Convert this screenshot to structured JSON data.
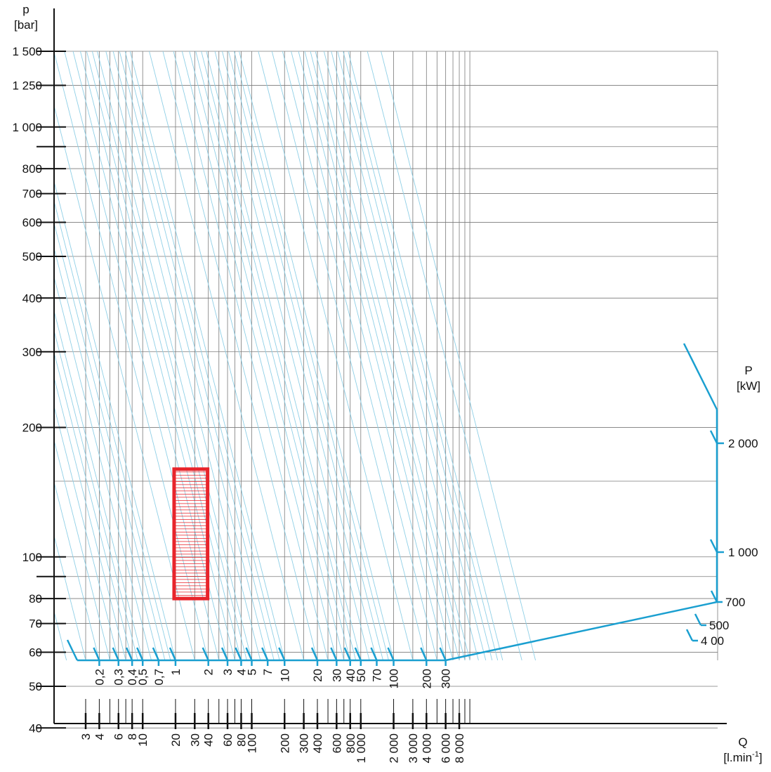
{
  "chart_data": {
    "type": "nomogram",
    "y_axis": {
      "label": "p",
      "unit": "[bar]",
      "scale": "log",
      "ticks": [
        {
          "v": 1500,
          "t": "1 500"
        },
        {
          "v": 1250,
          "t": "1 250"
        },
        {
          "v": 1000,
          "t": "1 000"
        },
        {
          "v": 900,
          "t": ""
        },
        {
          "v": 800,
          "t": "800"
        },
        {
          "v": 700,
          "t": "700"
        },
        {
          "v": 600,
          "t": "600"
        },
        {
          "v": 500,
          "t": "500"
        },
        {
          "v": 400,
          "t": "400"
        },
        {
          "v": 300,
          "t": "300"
        },
        {
          "v": 200,
          "t": "200"
        },
        {
          "v": 100,
          "t": "100"
        },
        {
          "v": 90,
          "t": ""
        },
        {
          "v": 80,
          "t": "80"
        },
        {
          "v": 70,
          "t": "70"
        },
        {
          "v": 60,
          "t": "60"
        },
        {
          "v": 50,
          "t": "50"
        },
        {
          "v": 40,
          "t": "40"
        }
      ]
    },
    "x_axis": {
      "label": "Q",
      "unit": "[l.min",
      "unit_exp": "-1",
      "unit_close": "]",
      "scale": "log",
      "ticks": [
        {
          "v": 3,
          "t": "3"
        },
        {
          "v": 4,
          "t": "4"
        },
        {
          "v": 5,
          "t": ""
        },
        {
          "v": 6,
          "t": "6"
        },
        {
          "v": 7,
          "t": ""
        },
        {
          "v": 8,
          "t": "8"
        },
        {
          "v": 10,
          "t": "10"
        },
        {
          "v": 20,
          "t": "20"
        },
        {
          "v": 30,
          "t": "30"
        },
        {
          "v": 40,
          "t": "40"
        },
        {
          "v": 50,
          "t": ""
        },
        {
          "v": 60,
          "t": "60"
        },
        {
          "v": 70,
          "t": ""
        },
        {
          "v": 80,
          "t": "80"
        },
        {
          "v": 100,
          "t": "100"
        },
        {
          "v": 200,
          "t": "200"
        },
        {
          "v": 300,
          "t": "300"
        },
        {
          "v": 400,
          "t": "400"
        },
        {
          "v": 500,
          "t": ""
        },
        {
          "v": 600,
          "t": "600"
        },
        {
          "v": 700,
          "t": ""
        },
        {
          "v": 800,
          "t": "800"
        },
        {
          "v": 1000,
          "t": "1 000"
        },
        {
          "v": 2000,
          "t": "2 000"
        },
        {
          "v": 3000,
          "t": "3 000"
        },
        {
          "v": 4000,
          "t": "4 000"
        },
        {
          "v": 5000,
          "t": ""
        },
        {
          "v": 6000,
          "t": "6 000"
        },
        {
          "v": 7000,
          "t": ""
        },
        {
          "v": 8000,
          "t": "8 000"
        },
        {
          "v": 9000,
          "t": ""
        },
        {
          "v": 10000,
          "t": ""
        }
      ]
    },
    "power_axis": {
      "label": "P",
      "unit": "[kW]",
      "scale": "log",
      "ticks_bottom": [
        {
          "v": 0.2,
          "t": "0,2"
        },
        {
          "v": 0.3,
          "t": "0,3"
        },
        {
          "v": 0.4,
          "t": "0,4"
        },
        {
          "v": 0.5,
          "t": "0,5"
        },
        {
          "v": 0.7,
          "t": "0,7"
        },
        {
          "v": 1,
          "t": "1"
        },
        {
          "v": 2,
          "t": "2"
        },
        {
          "v": 3,
          "t": "3"
        },
        {
          "v": 4,
          "t": "4"
        },
        {
          "v": 5,
          "t": "5"
        },
        {
          "v": 7,
          "t": "7"
        },
        {
          "v": 10,
          "t": "10"
        },
        {
          "v": 20,
          "t": "20"
        },
        {
          "v": 30,
          "t": "30"
        },
        {
          "v": 40,
          "t": "40"
        },
        {
          "v": 50,
          "t": "50"
        },
        {
          "v": 70,
          "t": "70"
        },
        {
          "v": 100,
          "t": "100"
        },
        {
          "v": 200,
          "t": "200"
        },
        {
          "v": 300,
          "t": "300"
        }
      ],
      "ticks_corner": [
        {
          "v": 400,
          "t": "4 00"
        },
        {
          "v": 500,
          "t": "500"
        },
        {
          "v": 700,
          "t": "700"
        }
      ],
      "ticks_right": [
        {
          "v": 1000,
          "t": "1 000"
        },
        {
          "v": 2000,
          "t": "2 000"
        }
      ],
      "line_values": [
        0.1,
        0.15,
        0.2,
        0.25,
        0.3,
        0.35,
        0.4,
        0.45,
        0.5,
        0.6,
        0.7,
        0.8,
        0.9,
        1,
        1.5,
        2,
        2.5,
        3,
        3.5,
        4,
        4.5,
        5,
        6,
        7,
        8,
        9,
        10,
        15,
        20,
        25,
        30,
        35,
        40,
        45,
        50,
        60,
        70,
        80,
        90,
        100,
        150,
        200,
        250,
        300,
        350,
        400,
        450,
        500,
        600,
        700,
        800,
        900,
        1000,
        1500,
        2000
      ]
    },
    "highlight_region": {
      "q_range": [
        20,
        45
      ],
      "p_range": [
        80,
        160
      ],
      "color": "#e8242b"
    },
    "colors": {
      "grid": "#7a7a7a",
      "power_lines": "#8fcfe6",
      "power_scale": "#1a9fd0",
      "axis": "#111111"
    }
  }
}
